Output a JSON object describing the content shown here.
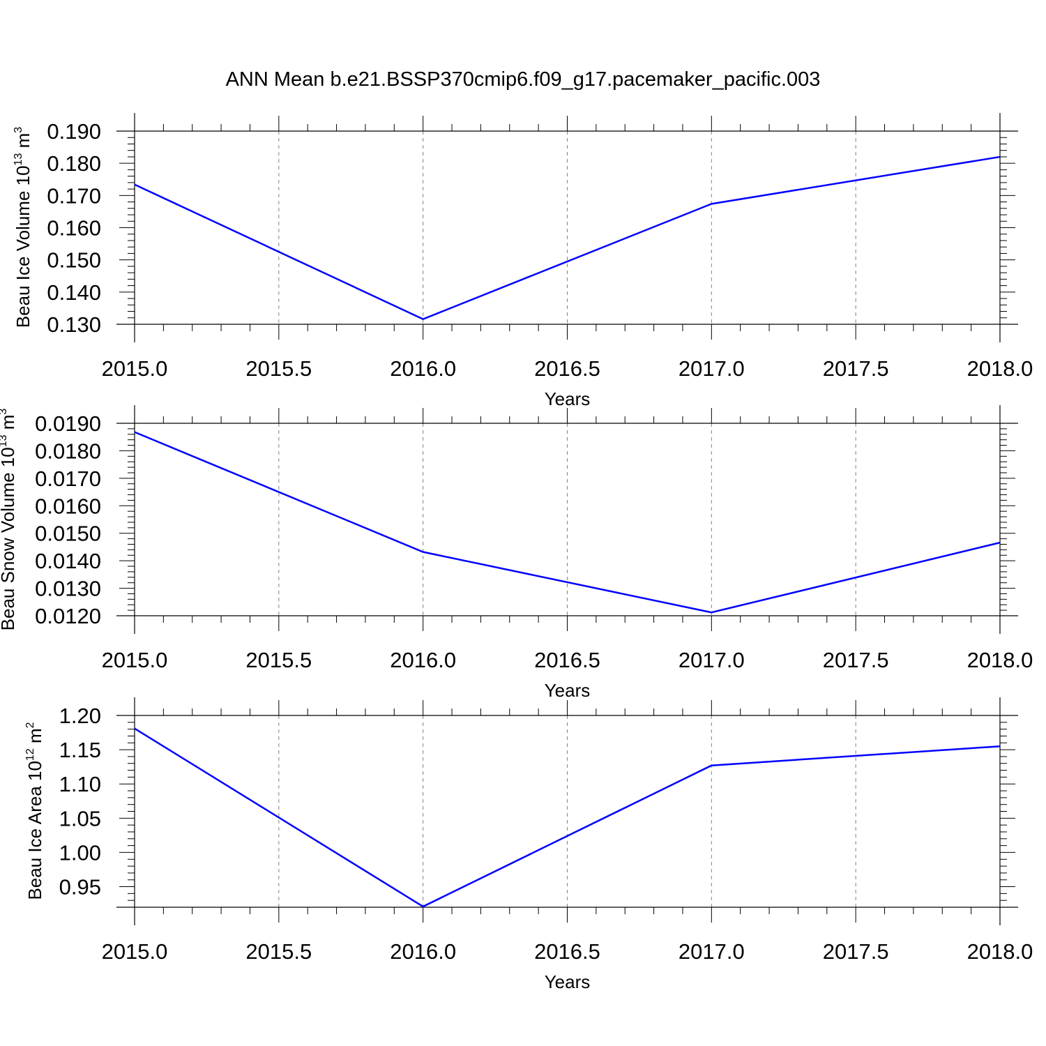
{
  "title": "ANN Mean b.e21.BSSP370cmip6.f09_g17.pacemaker_pacific.003",
  "colors": {
    "line": "#0000ff",
    "axis": "#000000",
    "grid": "#808080"
  },
  "chart_data": [
    {
      "type": "line",
      "xlabel": "Years",
      "ylabel": "Beau Ice Volume 10",
      "ylabel_exp": "13",
      "ylabel_unit": " m",
      "ylabel_unit_exp": "3",
      "x": [
        2015.0,
        2016.0,
        2017.0,
        2018.0
      ],
      "series": [
        {
          "values": [
            0.1734,
            0.1316,
            0.1674,
            0.182
          ]
        }
      ],
      "xlim": [
        2015.0,
        2018.0
      ],
      "ylim": [
        0.13,
        0.19
      ],
      "yticks": [
        "0.130",
        "0.140",
        "0.150",
        "0.160",
        "0.170",
        "0.180",
        "0.190"
      ],
      "xticks": [
        "2015.0",
        "2015.5",
        "2016.0",
        "2016.5",
        "2017.0",
        "2017.5",
        "2018.0"
      ],
      "grid": "vertical dashed"
    },
    {
      "type": "line",
      "xlabel": "Years",
      "ylabel": "Beau Snow Volume 10",
      "ylabel_exp": "13",
      "ylabel_unit": " m",
      "ylabel_unit_exp": "3",
      "x": [
        2015.0,
        2016.0,
        2017.0,
        2018.0
      ],
      "series": [
        {
          "values": [
            0.01868,
            0.01432,
            0.01212,
            0.01466
          ]
        }
      ],
      "xlim": [
        2015.0,
        2018.0
      ],
      "ylim": [
        0.012,
        0.019
      ],
      "yticks": [
        "0.0120",
        "0.0130",
        "0.0140",
        "0.0150",
        "0.0160",
        "0.0170",
        "0.0180",
        "0.0190"
      ],
      "xticks": [
        "2015.0",
        "2015.5",
        "2016.0",
        "2016.5",
        "2017.0",
        "2017.5",
        "2018.0"
      ],
      "grid": "vertical dashed"
    },
    {
      "type": "line",
      "xlabel": "Years",
      "ylabel": "Beau Ice Area 10",
      "ylabel_exp": "12",
      "ylabel_unit": " m",
      "ylabel_unit_exp": "2",
      "x": [
        2015.0,
        2016.0,
        2017.0,
        2018.0
      ],
      "series": [
        {
          "values": [
            1.181,
            0.921,
            1.127,
            1.155
          ]
        }
      ],
      "xlim": [
        2015.0,
        2018.0
      ],
      "ylim": [
        0.92,
        1.2
      ],
      "yticks": [
        "0.95",
        "1.00",
        "1.05",
        "1.10",
        "1.15",
        "1.20"
      ],
      "xticks": [
        "2015.0",
        "2015.5",
        "2016.0",
        "2016.5",
        "2017.0",
        "2017.5",
        "2018.0"
      ],
      "grid": "vertical dashed"
    }
  ]
}
